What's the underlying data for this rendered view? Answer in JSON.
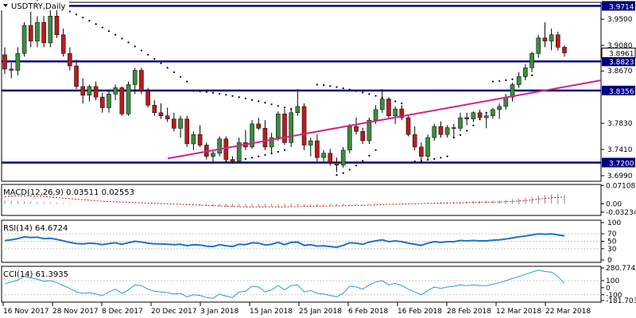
{
  "colors": {
    "bull": "#3c8c3c",
    "bear": "#b81c1c",
    "hline": "#000080",
    "trend": "#d6228a",
    "sar": "#000000",
    "macd_hist": "#8a8a8a",
    "macd_signal": "#c01818",
    "rsi": "#1e73c8",
    "cci": "#2a9bd6",
    "grid": "#c8c8c8"
  },
  "main": {
    "title": "USDTRY,Daily",
    "yticks": [
      "3.9500",
      "3.9080",
      "3.8670",
      "3.7830",
      "3.7410",
      "3.6990"
    ],
    "level_labels": [
      "3.9714",
      "3.8823",
      "3.8356",
      "3.7200"
    ],
    "current_price": "3.8961",
    "ylim": [
      3.69,
      3.977
    ],
    "levels": [
      3.9714,
      3.8823,
      3.8356,
      3.72
    ],
    "trendline": [
      [
        16.3,
        3.7265
      ],
      [
        51.5,
        3.852
      ]
    ],
    "sar_segments": [
      {
        "from": 2,
        "to": 18,
        "start": 3.985,
        "end": 3.85
      },
      {
        "from": 19,
        "to": 30,
        "start": 3.835,
        "end": 3.8
      },
      {
        "from": 22,
        "to": 28,
        "start": 3.722,
        "end": 3.74
      },
      {
        "from": 31,
        "to": 40,
        "start": 3.845,
        "end": 3.815
      },
      {
        "from": 33,
        "to": 37,
        "start": 3.7,
        "end": 3.74
      },
      {
        "from": 41,
        "to": 44,
        "start": 3.722,
        "end": 3.73
      },
      {
        "from": 45,
        "to": 48,
        "start": 3.76,
        "end": 3.8
      },
      {
        "from": 49,
        "to": 53,
        "start": 3.85,
        "end": 3.86
      }
    ]
  },
  "chart_data": [
    {
      "type": "candlestick",
      "title": "USDTRY,Daily",
      "x_ticks": [
        "16 Nov 2017",
        "28 Nov 2017",
        "8 Dec 2017",
        "20 Dec 2017",
        "3 Jan 2018",
        "15 Jan 2018",
        "25 Jan 2018",
        "6 Feb 2018",
        "16 Feb 2018",
        "28 Feb 2018",
        "12 Mar 2018",
        "22 Mar 2018"
      ],
      "ohlc": [
        [
          3.893,
          3.905,
          3.862,
          3.87
        ],
        [
          3.87,
          3.88,
          3.855,
          3.868
        ],
        [
          3.868,
          3.905,
          3.86,
          3.895
        ],
        [
          3.895,
          3.945,
          3.89,
          3.94
        ],
        [
          3.94,
          3.962,
          3.905,
          3.915
        ],
        [
          3.915,
          3.955,
          3.905,
          3.945
        ],
        [
          3.945,
          3.955,
          3.905,
          3.912
        ],
        [
          3.912,
          3.965,
          3.905,
          3.955
        ],
        [
          3.955,
          3.968,
          3.92,
          3.925
        ],
        [
          3.925,
          3.935,
          3.89,
          3.895
        ],
        [
          3.895,
          3.905,
          3.868,
          3.875
        ],
        [
          3.875,
          3.885,
          3.838,
          3.842
        ],
        [
          3.842,
          3.855,
          3.815,
          3.828
        ],
        [
          3.828,
          3.845,
          3.818,
          3.842
        ],
        [
          3.842,
          3.85,
          3.82,
          3.825
        ],
        [
          3.825,
          3.832,
          3.8,
          3.808
        ],
        [
          3.808,
          3.835,
          3.8,
          3.83
        ],
        [
          3.83,
          3.845,
          3.82,
          3.84
        ],
        [
          3.84,
          3.842,
          3.795,
          3.798
        ],
        [
          3.798,
          3.85,
          3.795,
          3.845
        ],
        [
          3.845,
          3.872,
          3.83,
          3.868
        ],
        [
          3.868,
          3.872,
          3.83,
          3.835
        ],
        [
          3.835,
          3.84,
          3.808,
          3.812
        ],
        [
          3.812,
          3.82,
          3.795,
          3.8
        ],
        [
          3.8,
          3.815,
          3.79,
          3.795
        ],
        [
          3.795,
          3.808,
          3.785,
          3.79
        ],
        [
          3.79,
          3.8,
          3.77,
          3.775
        ],
        [
          3.775,
          3.795,
          3.76,
          3.79
        ],
        [
          3.79,
          3.795,
          3.745,
          3.75
        ],
        [
          3.75,
          3.77,
          3.74,
          3.765
        ],
        [
          3.765,
          3.78,
          3.745,
          3.748
        ],
        [
          3.748,
          3.752,
          3.725,
          3.73
        ],
        [
          3.73,
          3.74,
          3.718,
          3.735
        ],
        [
          3.735,
          3.762,
          3.73,
          3.758
        ],
        [
          3.758,
          3.762,
          3.722,
          3.725
        ],
        [
          3.725,
          3.73,
          3.718,
          3.722
        ],
        [
          3.722,
          3.76,
          3.72,
          3.752
        ],
        [
          3.752,
          3.772,
          3.74,
          3.745
        ],
        [
          3.745,
          3.788,
          3.742,
          3.782
        ],
        [
          3.782,
          3.792,
          3.772,
          3.775
        ],
        [
          3.775,
          3.788,
          3.74,
          3.745
        ],
        [
          3.745,
          3.768,
          3.735,
          3.76
        ],
        [
          3.76,
          3.802,
          3.755,
          3.798
        ],
        [
          3.798,
          3.806,
          3.748,
          3.752
        ],
        [
          3.752,
          3.808,
          3.745,
          3.8
        ],
        [
          3.8,
          3.838,
          3.795,
          3.81
        ],
        [
          3.81,
          3.815,
          3.74,
          3.748
        ],
        [
          3.748,
          3.76,
          3.73,
          3.755
        ],
        [
          3.755,
          3.765,
          3.722,
          3.728
        ],
        [
          3.728,
          3.74,
          3.722,
          3.735
        ],
        [
          3.735,
          3.742,
          3.715,
          3.72
        ],
        [
          3.72,
          3.728,
          3.705,
          3.716
        ],
        [
          3.716,
          3.745,
          3.712,
          3.74
        ],
        [
          3.74,
          3.782,
          3.735,
          3.778
        ],
        [
          3.778,
          3.792,
          3.765,
          3.77
        ],
        [
          3.77,
          3.776,
          3.75,
          3.755
        ],
        [
          3.755,
          3.792,
          3.75,
          3.788
        ],
        [
          3.788,
          3.812,
          3.782,
          3.805
        ],
        [
          3.805,
          3.838,
          3.8,
          3.822
        ],
        [
          3.822,
          3.825,
          3.79,
          3.795
        ],
        [
          3.795,
          3.81,
          3.782,
          3.806
        ],
        [
          3.806,
          3.812,
          3.788,
          3.792
        ],
        [
          3.792,
          3.796,
          3.762,
          3.765
        ],
        [
          3.765,
          3.778,
          3.74,
          3.745
        ],
        [
          3.745,
          3.752,
          3.72,
          3.73
        ],
        [
          3.73,
          3.765,
          3.725,
          3.76
        ],
        [
          3.76,
          3.782,
          3.755,
          3.778
        ],
        [
          3.778,
          3.786,
          3.76,
          3.765
        ],
        [
          3.765,
          3.78,
          3.76,
          3.776
        ],
        [
          3.776,
          3.782,
          3.76,
          3.775
        ],
        [
          3.775,
          3.8,
          3.77,
          3.792
        ],
        [
          3.792,
          3.8,
          3.78,
          3.79
        ],
        [
          3.79,
          3.802,
          3.785,
          3.8
        ],
        [
          3.8,
          3.805,
          3.788,
          3.792
        ],
        [
          3.792,
          3.8,
          3.775,
          3.795
        ],
        [
          3.795,
          3.808,
          3.79,
          3.805
        ],
        [
          3.805,
          3.815,
          3.79,
          3.81
        ],
        [
          3.81,
          3.83,
          3.805,
          3.825
        ],
        [
          3.825,
          3.848,
          3.818,
          3.845
        ],
        [
          3.845,
          3.865,
          3.84,
          3.858
        ],
        [
          3.858,
          3.878,
          3.852,
          3.872
        ],
        [
          3.872,
          3.898,
          3.865,
          3.895
        ],
        [
          3.895,
          3.925,
          3.888,
          3.92
        ],
        [
          3.92,
          3.945,
          3.905,
          3.915
        ],
        [
          3.915,
          3.935,
          3.9,
          3.925
        ],
        [
          3.925,
          3.93,
          3.9,
          3.905
        ],
        [
          3.905,
          3.908,
          3.89,
          3.896
        ]
      ],
      "ylim": [
        3.69,
        3.977
      ],
      "price_levels": [
        3.9714,
        3.8823,
        3.8356,
        3.72
      ],
      "last_price": 3.8961
    },
    {
      "type": "bar",
      "title": "MACD(12,26,9) 0.03511 0.02553",
      "ticks": [
        "0.07108",
        "0.00",
        "-0.03234"
      ],
      "ylim": [
        -0.045,
        0.075
      ],
      "macd_histogram": [
        0.012,
        0.011,
        0.01,
        0.009,
        0.008,
        0.007,
        0.006,
        0.005,
        0.004,
        0.003,
        0.003,
        0.002,
        0.001,
        0.001,
        0.001,
        0.001,
        0.001,
        0.001,
        0.001,
        0.001,
        0.001,
        0.001,
        0.001,
        0.001,
        0.001,
        0.001,
        0.0,
        -0.002,
        -0.004,
        -0.005,
        -0.006,
        -0.008,
        -0.009,
        -0.01,
        -0.012,
        -0.012,
        -0.012,
        -0.012,
        -0.012,
        -0.012,
        -0.011,
        -0.011,
        -0.01,
        -0.01,
        -0.009,
        -0.008,
        -0.008,
        -0.008,
        -0.008,
        -0.008,
        -0.008,
        -0.008,
        -0.008,
        -0.006,
        -0.005,
        -0.004,
        -0.003,
        -0.002,
        -0.001,
        0.0,
        0.0,
        0.001,
        0.002,
        0.003,
        0.003,
        0.004,
        0.005,
        0.006,
        0.007,
        0.007,
        0.008,
        0.009,
        0.01,
        0.011,
        0.012,
        0.013,
        0.014,
        0.016,
        0.018,
        0.021,
        0.024,
        0.028,
        0.031,
        0.034,
        0.036,
        0.036,
        0.035
      ],
      "signal": [
        0.028,
        0.03,
        0.031,
        0.031,
        0.03,
        0.029,
        0.028,
        0.026,
        0.024,
        0.022,
        0.02,
        0.018,
        0.016,
        0.014,
        0.012,
        0.01,
        0.009,
        0.008,
        0.007,
        0.006,
        0.005,
        0.004,
        0.003,
        0.002,
        0.001,
        0.0,
        -0.001,
        -0.002,
        -0.003,
        -0.004,
        -0.005,
        -0.006,
        -0.007,
        -0.008,
        -0.009,
        -0.01,
        -0.011,
        -0.012,
        -0.012,
        -0.012,
        -0.012,
        -0.012,
        -0.012,
        -0.012,
        -0.011,
        -0.011,
        -0.01,
        -0.01,
        -0.009,
        -0.009,
        -0.008,
        -0.008,
        -0.008,
        -0.007,
        -0.006,
        -0.006,
        -0.005,
        -0.004,
        -0.003,
        -0.002,
        -0.002,
        -0.001,
        0.0,
        0.0,
        0.001,
        0.002,
        0.002,
        0.003,
        0.003,
        0.004,
        0.004,
        0.005,
        0.005,
        0.006,
        0.006,
        0.007,
        0.007,
        0.008,
        0.009,
        0.011,
        0.013,
        0.015,
        0.018,
        0.021,
        0.023,
        0.025,
        0.026
      ]
    },
    {
      "type": "line",
      "title": "RSI(14) 64.6724",
      "ticks": [
        "100",
        "70",
        "50",
        "30",
        "0"
      ],
      "levels": [
        70,
        50,
        30
      ],
      "ylim": [
        0,
        100
      ],
      "values": [
        52,
        54,
        57,
        62,
        60,
        61,
        57,
        58,
        55,
        51,
        47,
        44,
        43,
        45,
        44,
        41,
        44,
        46,
        42,
        46,
        50,
        48,
        45,
        43,
        43,
        42,
        41,
        42,
        38,
        41,
        40,
        37,
        36,
        41,
        38,
        36,
        42,
        41,
        46,
        45,
        40,
        42,
        47,
        41,
        47,
        48,
        39,
        41,
        37,
        38,
        36,
        34,
        39,
        46,
        45,
        42,
        48,
        51,
        54,
        49,
        51,
        49,
        45,
        42,
        39,
        45,
        49,
        47,
        49,
        49,
        52,
        51,
        52,
        51,
        51,
        53,
        54,
        56,
        59,
        62,
        64,
        67,
        70,
        69,
        70,
        67,
        64.67
      ]
    },
    {
      "type": "line",
      "title": "CCI(14) 61.3935",
      "ticks": [
        "280.7747",
        "100",
        "0",
        "-100",
        "-181.7034"
      ],
      "ylim": [
        -181.7034,
        280.7747
      ],
      "values": [
        60,
        80,
        110,
        160,
        140,
        120,
        90,
        100,
        70,
        30,
        -10,
        -60,
        -80,
        -70,
        -90,
        -110,
        -60,
        -20,
        -80,
        -30,
        40,
        30,
        -20,
        -50,
        -60,
        -70,
        -90,
        -80,
        -130,
        -100,
        -110,
        -140,
        -150,
        -90,
        -120,
        -140,
        -60,
        -50,
        20,
        10,
        -60,
        -30,
        30,
        -30,
        30,
        40,
        -60,
        -40,
        -80,
        -90,
        -110,
        -130,
        -80,
        20,
        10,
        -20,
        40,
        80,
        100,
        40,
        60,
        30,
        -20,
        -60,
        -100,
        -40,
        10,
        -10,
        10,
        20,
        40,
        30,
        40,
        30,
        30,
        50,
        70,
        100,
        130,
        160,
        190,
        220,
        250,
        230,
        220,
        160,
        61.39
      ]
    }
  ],
  "x_axis": {
    "labels": [
      "16 Nov 2017",
      "28 Nov 2017",
      "8 Dec 2017",
      "20 Dec 2017",
      "3 Jan 2018",
      "15 Jan 2018",
      "25 Jan 2018",
      "6 Feb 2018",
      "16 Feb 2018",
      "28 Feb 2018",
      "12 Mar 2018",
      "22 Mar 2018"
    ]
  },
  "macd": {
    "title": "MACD(12,26,9) 0.03511 0.02553",
    "ticks": [
      "0.07108",
      "0.00",
      "-0.03234"
    ]
  },
  "rsi": {
    "title": "RSI(14) 64.6724",
    "ticks": [
      "100",
      "70",
      "50",
      "30",
      "0"
    ]
  },
  "cci": {
    "title": "CCI(14) 61.3935",
    "ticks": [
      "280.7747",
      "100",
      "0",
      "-100",
      "-181.7034"
    ]
  }
}
